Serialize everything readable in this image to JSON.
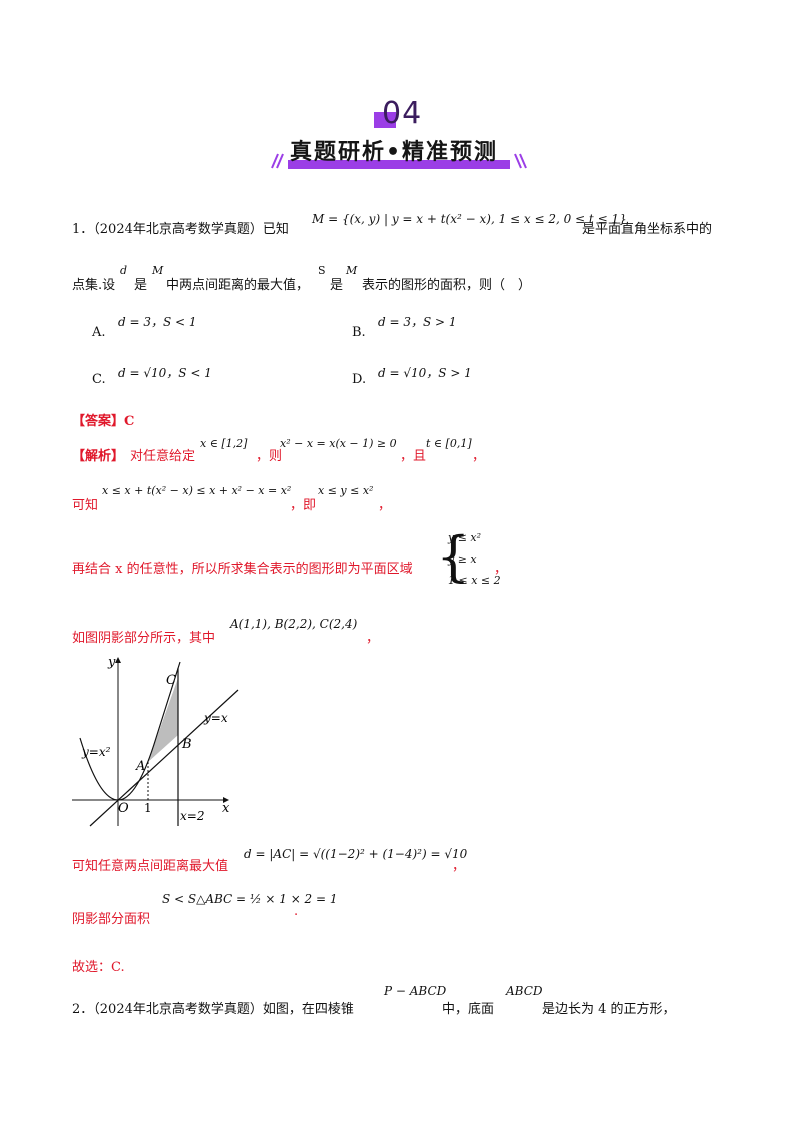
{
  "header": {
    "number": "04",
    "banner_title": "真题研析•精准预测"
  },
  "q1": {
    "prefix": "1．（2024年北京高考数学真题）已知",
    "set_math": "M = {(x, y) | y = x + t(x² − x), 1 ≤ x ≤ 2, 0 ≤ t ≤ 1}",
    "suffix": "是平面直角坐标系中的",
    "line2_a": "点集.设",
    "line2_d": "d",
    "line2_b": "是",
    "line2_M": "M",
    "line2_c": "中两点间距离的最大值，",
    "line2_S": "S",
    "line2_d2": "是",
    "line2_M2": "M",
    "line2_e": "表示的图形的面积，则（　）",
    "options": [
      {
        "letter": "A.",
        "math": "d = 3，S < 1"
      },
      {
        "letter": "B.",
        "math": "d = 3，S > 1"
      },
      {
        "letter": "C.",
        "math": "d = √10，S < 1"
      },
      {
        "letter": "D.",
        "math": "d = √10，S > 1"
      }
    ]
  },
  "answer": {
    "label": "【答案】C"
  },
  "analysis": {
    "label": "【解析】",
    "l1_text": "对任意给定",
    "l1_m1": "x ∈ [1,2]",
    "l1_t2": "，则",
    "l1_m2": "x² − x = x(x − 1) ≥ 0",
    "l1_t3": "，且",
    "l1_m3": "t ∈ [0,1]",
    "l1_t4": "，",
    "l2_text": "可知",
    "l2_m1": "x ≤ x + t(x² − x) ≤ x + x² − x = x²",
    "l2_t2": "，即",
    "l2_m2": "x ≤ y ≤ x²",
    "l2_t3": "，",
    "l3_text": "再结合 x 的任意性，所以所求集合表示的图形即为平面区域",
    "l3_sys": [
      "y ≤ x²",
      "y ≥ x",
      "1 ≤ x ≤ 2"
    ],
    "l3_end": "，",
    "l4_text": "如图阴影部分所示，其中",
    "l4_m": "A(1,1), B(2,2), C(2,4)",
    "l4_end": "，",
    "l5_text": "可知任意两点间距离最大值",
    "l5_m": "d = |AC| = √((1−2)² + (1−4)²) = √10",
    "l5_end": "，",
    "l6_text": "阴影部分面积",
    "l6_m": "S < S△ABC = ½ × 1 × 2 = 1",
    "l6_end": ".",
    "l7_text": "故选：C."
  },
  "figure": {
    "y_axis": "y",
    "x_axis": "x",
    "origin": "O",
    "tick_1": "1",
    "label_parabola": "y=x²",
    "label_line": "y=x",
    "label_vline": "x=2",
    "point_A": "A",
    "point_B": "B",
    "point_C": "C"
  },
  "q2": {
    "prefix": "2．（2024年北京高考数学真题）如图，在四棱锥",
    "m1": "P − ABCD",
    "t2": "中，底面",
    "m2": "ABCD",
    "t3": "是边长为 4 的正方形，"
  }
}
